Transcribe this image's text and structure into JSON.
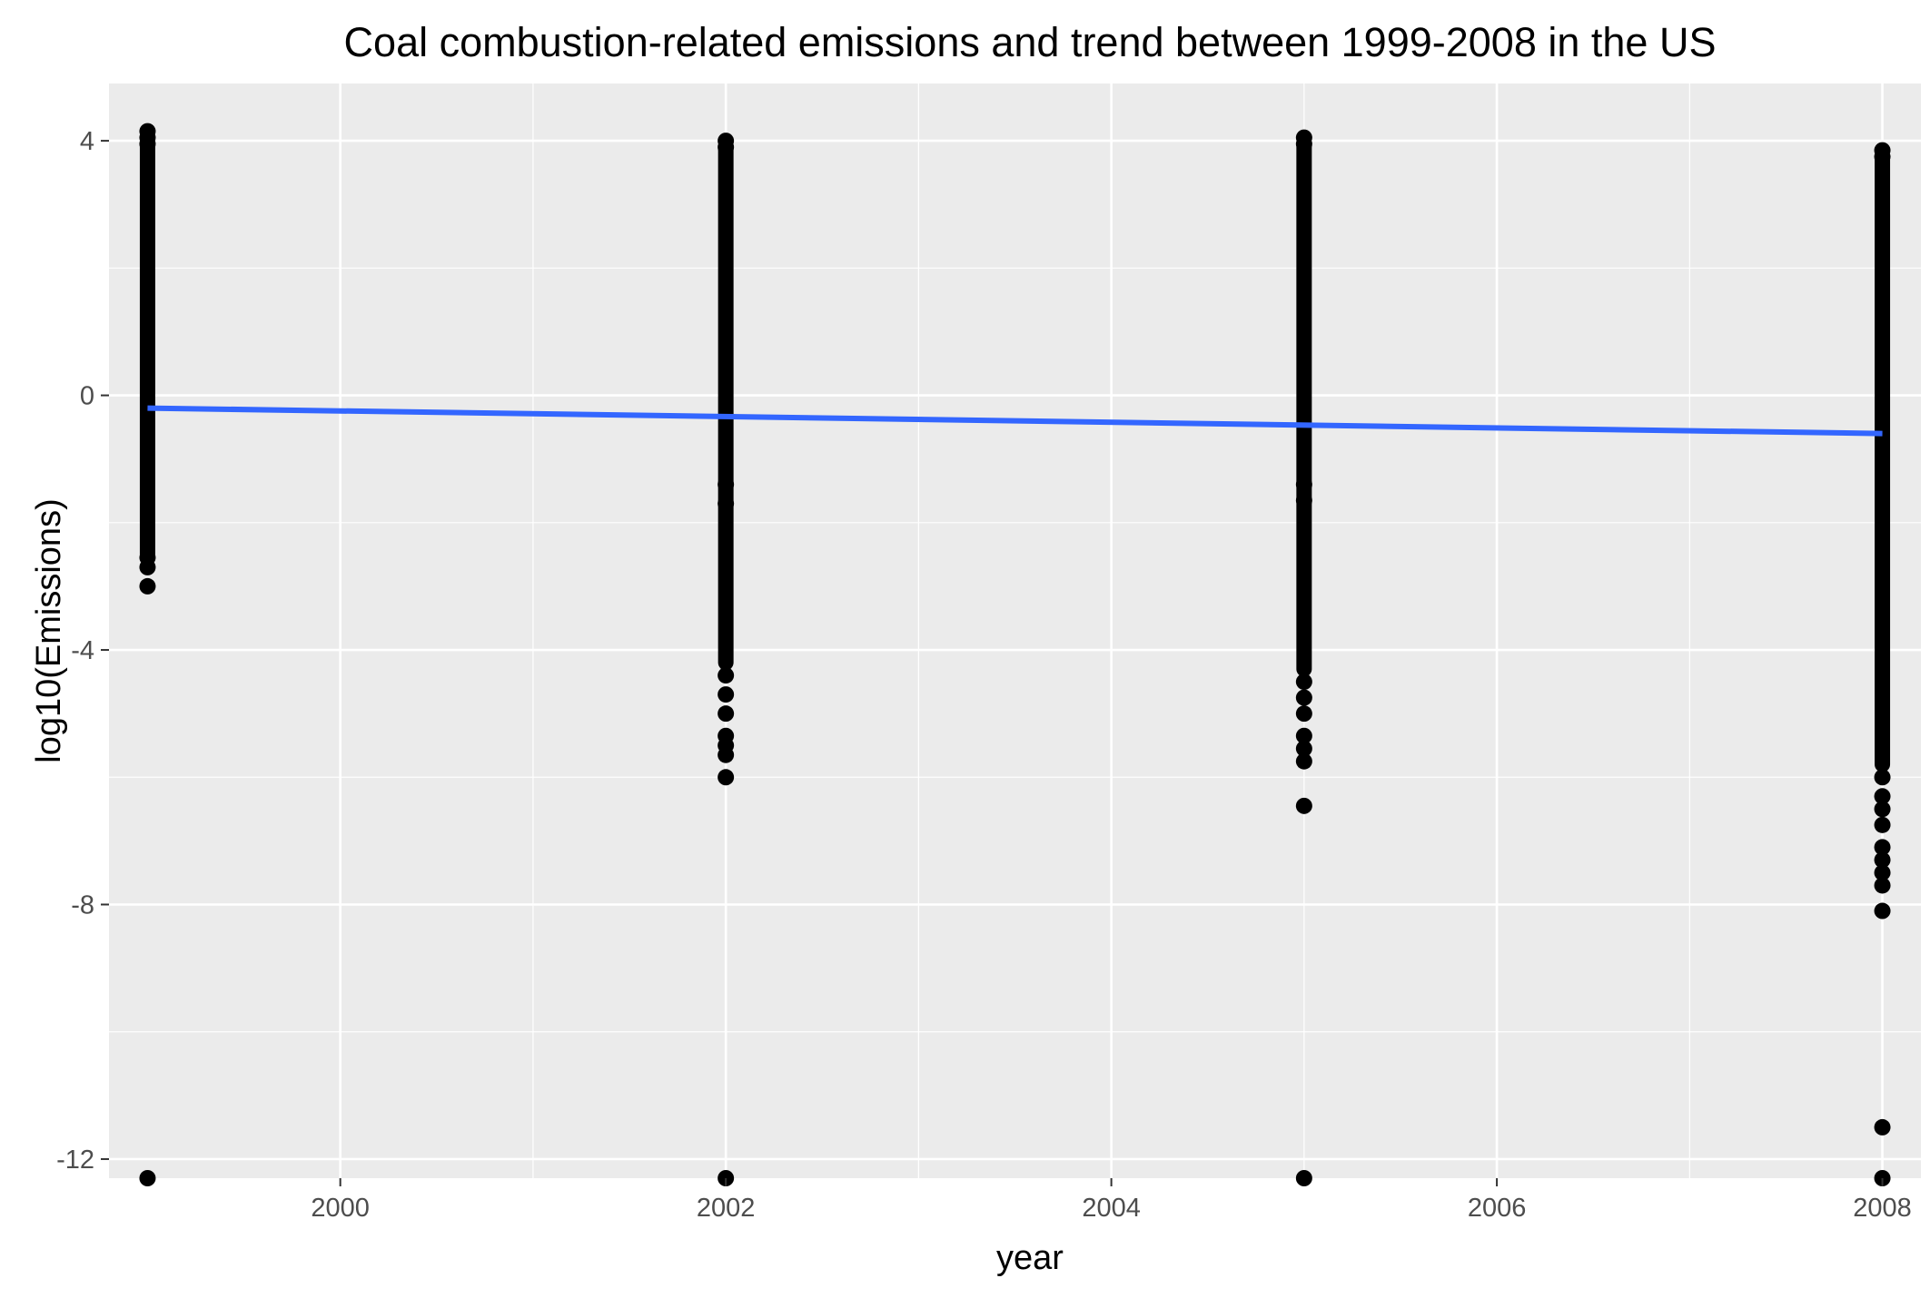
{
  "chart_data": {
    "type": "scatter",
    "title": "Coal combustion-related emissions and trend between 1999-2008 in the US",
    "xlabel": "year",
    "ylabel": "log10(Emissions)",
    "xlim": [
      1998.8,
      2008.2
    ],
    "ylim": [
      -12.3,
      4.9
    ],
    "x_ticks": [
      2000,
      2002,
      2004,
      2006,
      2008
    ],
    "x_tick_labels": [
      "2000",
      "2002",
      "2004",
      "2006",
      "2008"
    ],
    "y_ticks": [
      4,
      0,
      -4,
      -8,
      -12
    ],
    "y_tick_labels": [
      "4",
      "0",
      "-4",
      "-8",
      "-12"
    ],
    "grid": true,
    "panel_background": "#ebebeb",
    "grid_color": "#ffffff",
    "point_color": "#000000",
    "trend_color": "#3366ff",
    "point_groups": [
      {
        "x": 1999,
        "band": [
          -2.5,
          4.0
        ],
        "points": [
          4.15,
          4.05,
          3.95,
          -2.55,
          -2.7,
          -3.0,
          -12.3
        ]
      },
      {
        "x": 2002,
        "band": [
          -4.2,
          3.9
        ],
        "points": [
          4.0,
          3.9,
          -1.4,
          -1.7,
          -4.4,
          -4.7,
          -5.0,
          -5.35,
          -5.5,
          -5.65,
          -6.0,
          -12.3
        ]
      },
      {
        "x": 2005,
        "band": [
          -4.3,
          3.9
        ],
        "points": [
          4.05,
          3.95,
          -1.4,
          -1.65,
          -4.5,
          -4.75,
          -5.0,
          -5.35,
          -5.55,
          -5.75,
          -6.45,
          -12.3
        ]
      },
      {
        "x": 2008,
        "band": [
          -5.8,
          3.7
        ],
        "points": [
          3.85,
          3.75,
          -6.0,
          -6.3,
          -6.5,
          -6.75,
          -7.1,
          -7.3,
          -7.5,
          -7.7,
          -8.1,
          -11.5,
          -12.3
        ]
      }
    ],
    "trend_line": {
      "x": [
        1999,
        2008
      ],
      "y": [
        -0.2,
        -0.6
      ]
    }
  }
}
